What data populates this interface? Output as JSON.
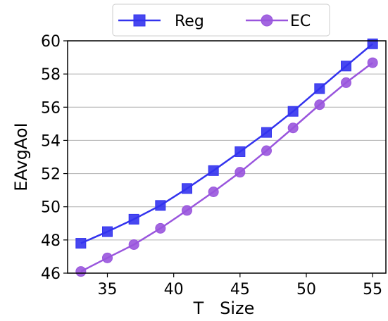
{
  "chart_data": {
    "type": "line",
    "xlabel": "T   Size",
    "ylabel": "EAvgAoI",
    "xlim": [
      32.0,
      56.0
    ],
    "ylim": [
      46,
      60
    ],
    "xticks": [
      35,
      40,
      45,
      50,
      55
    ],
    "yticks": [
      46,
      48,
      50,
      52,
      54,
      56,
      58,
      60
    ],
    "grid": "horizontal",
    "legend_position": "top-center",
    "x": [
      33,
      35,
      37,
      39,
      41,
      43,
      45,
      47,
      49,
      51,
      53,
      55
    ],
    "series": [
      {
        "name": "Reg",
        "color": "#3333ee",
        "marker": "square",
        "values": [
          47.8,
          48.5,
          49.25,
          50.08,
          51.1,
          52.18,
          53.32,
          54.48,
          55.75,
          57.12,
          58.48,
          59.82
        ]
      },
      {
        "name": "EC",
        "color": "#9955dd",
        "marker": "circle",
        "values": [
          46.1,
          46.92,
          47.72,
          48.7,
          49.78,
          50.9,
          52.08,
          53.38,
          54.75,
          56.15,
          57.48,
          58.68
        ]
      }
    ]
  }
}
